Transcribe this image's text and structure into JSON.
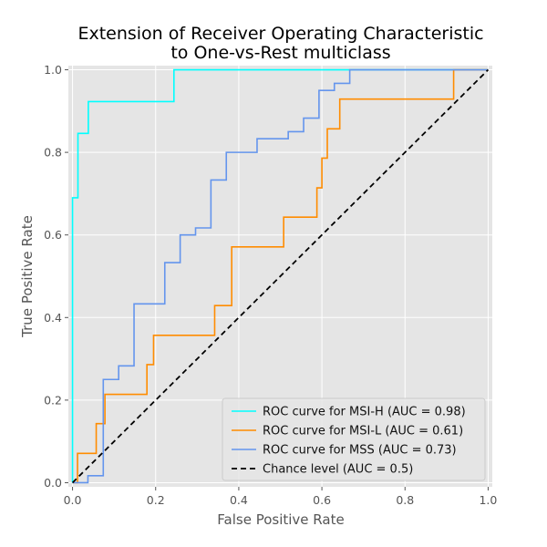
{
  "chart_data": {
    "type": "line",
    "title_lines": [
      "Extension of Receiver Operating Characteristic",
      "to One-vs-Rest multiclass"
    ],
    "xlabel": "False Positive Rate",
    "ylabel": "True Positive Rate",
    "xlim": [
      -0.01,
      1.01
    ],
    "ylim": [
      -0.01,
      1.01
    ],
    "xticks": [
      0.0,
      0.2,
      0.4,
      0.6,
      0.8,
      1.0
    ],
    "xtick_labels": [
      "0.0",
      "0.2",
      "0.4",
      "0.6",
      "0.8",
      "1.0"
    ],
    "yticks": [
      0.0,
      0.2,
      0.4,
      0.6,
      0.8,
      1.0
    ],
    "ytick_labels": [
      "0.0",
      "0.2",
      "0.4",
      "0.6",
      "0.8",
      "1.0"
    ],
    "grid": true,
    "legend_position": "lower-right",
    "series": [
      {
        "name": "ROC curve for MSI-H (AUC = 0.98)",
        "color": "#00ffff",
        "style": "step",
        "x": [
          0,
          0,
          0.013,
          0.013,
          0.038,
          0.038,
          0.244,
          0.244,
          1.0
        ],
        "y": [
          0,
          0.69,
          0.69,
          0.846,
          0.846,
          0.923,
          0.923,
          1.0,
          1.0
        ]
      },
      {
        "name": "ROC curve for MSI-L (AUC = 0.61)",
        "color": "#ff8c00",
        "style": "step",
        "x": [
          0,
          0.012,
          0.012,
          0.057,
          0.057,
          0.078,
          0.078,
          0.179,
          0.179,
          0.195,
          0.195,
          0.342,
          0.342,
          0.383,
          0.383,
          0.508,
          0.508,
          0.588,
          0.588,
          0.6,
          0.6,
          0.613,
          0.613,
          0.643,
          0.643,
          0.917,
          0.917,
          1.0
        ],
        "y": [
          0,
          0,
          0.071,
          0.071,
          0.143,
          0.143,
          0.214,
          0.214,
          0.286,
          0.286,
          0.357,
          0.357,
          0.429,
          0.429,
          0.571,
          0.571,
          0.643,
          0.643,
          0.714,
          0.714,
          0.786,
          0.786,
          0.857,
          0.857,
          0.929,
          0.929,
          1.0,
          1.0
        ]
      },
      {
        "name": "ROC curve for MSS (AUC = 0.73)",
        "color": "#6495ed",
        "style": "step",
        "x": [
          0,
          0.037,
          0.037,
          0.074,
          0.074,
          0.111,
          0.111,
          0.148,
          0.148,
          0.222,
          0.222,
          0.259,
          0.259,
          0.296,
          0.296,
          0.333,
          0.333,
          0.37,
          0.37,
          0.444,
          0.444,
          0.519,
          0.519,
          0.556,
          0.556,
          0.593,
          0.593,
          0.63,
          0.63,
          0.667,
          0.667,
          1.0
        ],
        "y": [
          0,
          0,
          0.017,
          0.017,
          0.25,
          0.25,
          0.283,
          0.283,
          0.433,
          0.433,
          0.533,
          0.533,
          0.6,
          0.6,
          0.617,
          0.617,
          0.733,
          0.733,
          0.8,
          0.8,
          0.833,
          0.833,
          0.85,
          0.85,
          0.883,
          0.883,
          0.95,
          0.95,
          0.967,
          0.967,
          1.0,
          1.0
        ]
      },
      {
        "name": "Chance level (AUC = 0.5)",
        "color": "#000000",
        "style": "dashed",
        "x": [
          0,
          1
        ],
        "y": [
          0,
          1
        ]
      }
    ]
  }
}
